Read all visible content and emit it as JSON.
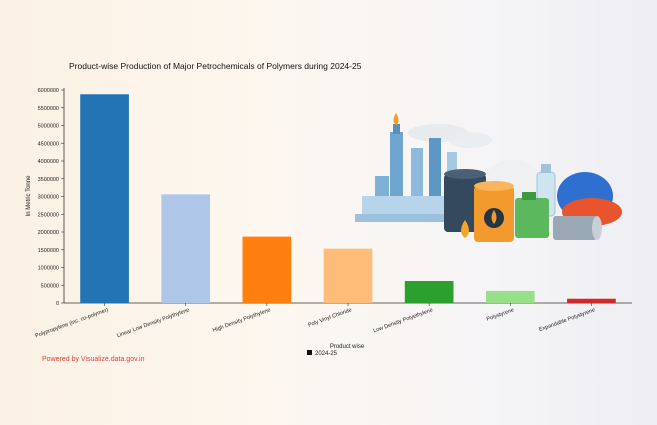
{
  "chart_data": {
    "type": "bar",
    "title": "Product-wise Production of Major Petrochemicals of Polymers during 2024-25",
    "xlabel": "Product wise",
    "ylabel": "In Metric Tonne",
    "ylim": [
      0,
      6000000
    ],
    "yticks": [
      0,
      500000,
      1000000,
      1500000,
      2000000,
      2500000,
      3000000,
      3500000,
      4000000,
      4500000,
      5000000,
      5500000,
      6000000
    ],
    "grid": false,
    "legend_position": "bottom-center",
    "categories": [
      "Polypropylene (inc. co-polymer)",
      "Linear Low Density Polythylene",
      "High Density Polythylene",
      "Poly Vinyl Chloride",
      "Low Density Polyethylene",
      "Polystyrene",
      "Expandable Polystyrene"
    ],
    "series": [
      {
        "name": "2024-25",
        "values": [
          5880000,
          3060000,
          1870000,
          1530000,
          620000,
          340000,
          120000
        ]
      }
    ],
    "bar_colors": [
      "#2374b5",
      "#aec7e8",
      "#ff7f0e",
      "#ffbb78",
      "#2ca02c",
      "#98df8a",
      "#d62728"
    ]
  },
  "footer": {
    "powered_by": "Powered by Visualize.data.gov.in"
  },
  "illustration": {
    "icon": "petrochemical-plant-polymers-icon"
  }
}
